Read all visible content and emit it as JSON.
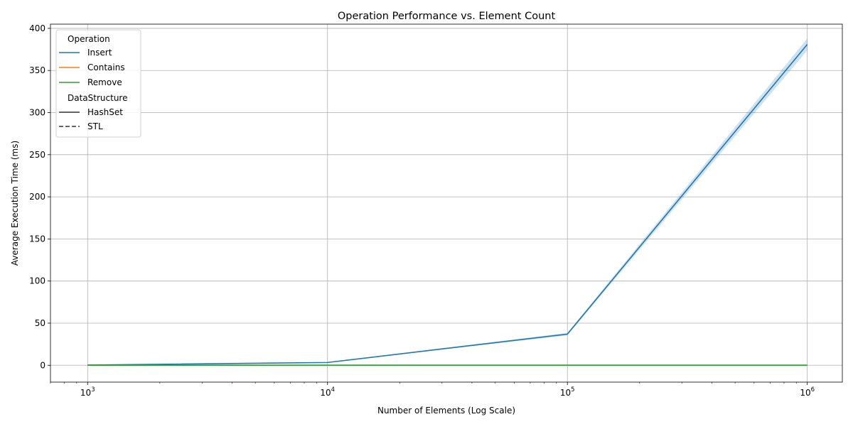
{
  "chart_data": {
    "type": "line",
    "title": "Operation Performance vs. Element Count",
    "xlabel": "Number of Elements (Log Scale)",
    "ylabel": "Average Execution Time (ms)",
    "xscale": "log",
    "x": [
      1000,
      10000,
      100000,
      1000000
    ],
    "xticks": [
      {
        "value": 1000,
        "base": "10",
        "exp": "3"
      },
      {
        "value": 10000,
        "base": "10",
        "exp": "4"
      },
      {
        "value": 100000,
        "base": "10",
        "exp": "5"
      },
      {
        "value": 1000000,
        "base": "10",
        "exp": "6"
      }
    ],
    "xlim": [
      700,
      1400000
    ],
    "ylim": [
      -20,
      405
    ],
    "yticks": [
      0,
      50,
      100,
      150,
      200,
      250,
      300,
      350,
      400
    ],
    "grid": true,
    "legend_placement": "upper-left",
    "legend": {
      "hue_title": "Operation",
      "style_title": "DataStructure",
      "hue_entries": [
        {
          "name": "Insert",
          "color": "#1f77b4"
        },
        {
          "name": "Contains",
          "color": "#ff7f0e"
        },
        {
          "name": "Remove",
          "color": "#2ca02c"
        }
      ],
      "style_entries": [
        {
          "name": "HashSet",
          "dash": "solid"
        },
        {
          "name": "STL",
          "dash": "dashed"
        }
      ]
    },
    "series": [
      {
        "name": "Insert",
        "color": "#1f77b4",
        "values": [
          0.3,
          3.3,
          37.0,
          381.0
        ],
        "ci_low": [
          0.3,
          3.1,
          35.5,
          374.0
        ],
        "ci_high": [
          0.3,
          3.5,
          38.5,
          388.0
        ]
      },
      {
        "name": "Contains",
        "color": "#ff7f0e",
        "values": [
          0.05,
          0.1,
          0.1,
          0.1
        ]
      },
      {
        "name": "Remove",
        "color": "#2ca02c",
        "values": [
          0.05,
          0.1,
          0.1,
          0.1
        ]
      }
    ]
  }
}
